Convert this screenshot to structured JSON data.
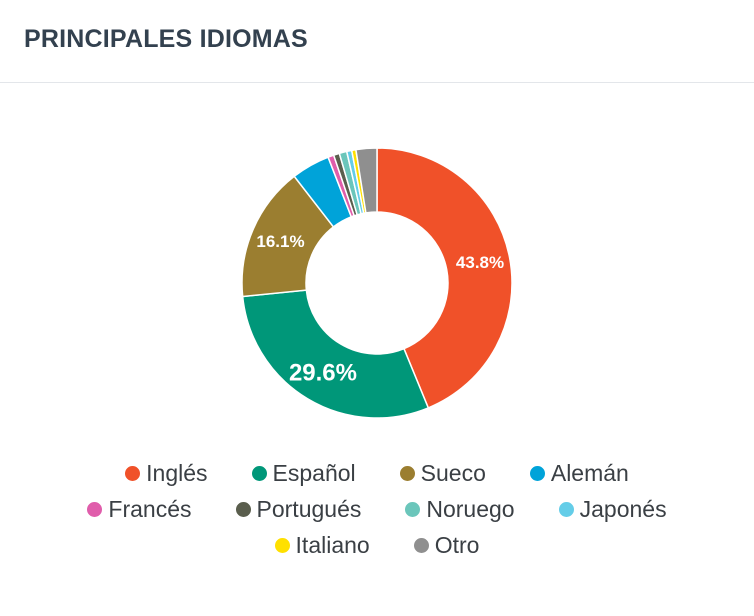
{
  "header": {
    "title": "PRINCIPALES IDIOMAS"
  },
  "chart_data": {
    "type": "pie",
    "variant": "donut",
    "title": "",
    "legend_position": "bottom",
    "series": [
      {
        "name": "Inglés",
        "value": 43.8,
        "color": "#f05129",
        "label": "43.8%"
      },
      {
        "name": "Español",
        "value": 29.6,
        "color": "#009779",
        "label": "29.6%"
      },
      {
        "name": "Sueco",
        "value": 16.1,
        "color": "#9b7e30",
        "label": "16.1%"
      },
      {
        "name": "Alemán",
        "value": 4.6,
        "color": "#00a3d9",
        "label": ""
      },
      {
        "name": "Francés",
        "value": 0.7,
        "color": "#e05dab",
        "label": ""
      },
      {
        "name": "Portugués",
        "value": 0.7,
        "color": "#5a5e4d",
        "label": ""
      },
      {
        "name": "Noruego",
        "value": 0.9,
        "color": "#6bc6bb",
        "label": ""
      },
      {
        "name": "Japonés",
        "value": 0.6,
        "color": "#64cde8",
        "label": ""
      },
      {
        "name": "Italiano",
        "value": 0.5,
        "color": "#ffe000",
        "label": ""
      },
      {
        "name": "Otro",
        "value": 2.5,
        "color": "#8f8f8f",
        "label": ""
      }
    ],
    "legend_rows": [
      [
        "Inglés",
        "Español",
        "Sueco",
        "Alemán"
      ],
      [
        "Francés",
        "Portugués",
        "Noruego",
        "Japonés"
      ],
      [
        "Italiano",
        "Otro"
      ]
    ]
  }
}
